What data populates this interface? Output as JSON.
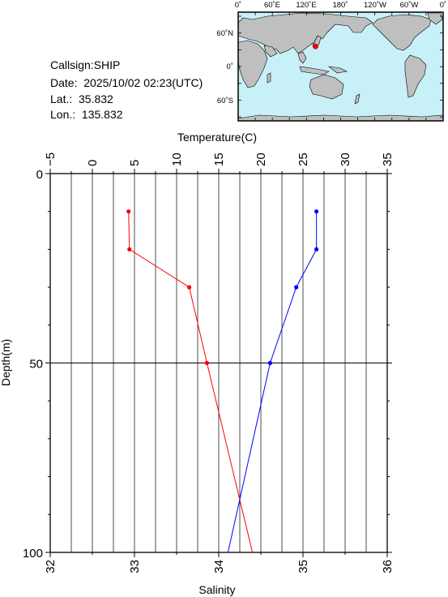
{
  "station": {
    "callsign": "Callsign:SHIP",
    "date": "Date:  2025/10/02 02:23(UTC)",
    "lat": "Lat.:  35.832",
    "lon": "Lon.:  135.832"
  },
  "map": {
    "top_labels": [
      "0˚",
      "60˚E",
      "120˚E",
      "180˚",
      "120˚W",
      "60˚W",
      "0˚"
    ],
    "lat_labels": [
      "60˚N",
      "0˚",
      "60˚S"
    ],
    "marker": {
      "lon": 135.832,
      "lat": 35.832
    },
    "colors": {
      "ocean": "#c8f0f8",
      "land": "#bfbfbf",
      "marker": "#ff0000"
    }
  },
  "chart_data": {
    "type": "line",
    "top_axis_label": "Temperature(C)",
    "bottom_axis_label": "Salinity",
    "ylabel": "Depth(m)",
    "temperature_ticks": [
      "−5",
      "0",
      "5",
      "10",
      "15",
      "20",
      "25",
      "30",
      "35"
    ],
    "salinity_ticks": [
      "32",
      "33",
      "34",
      "35",
      "36"
    ],
    "depth_ticks": [
      "0",
      "50",
      "100"
    ],
    "xlim_temperature": [
      -5,
      35
    ],
    "xlim_salinity": [
      32,
      36
    ],
    "ylim_depth": [
      0,
      100
    ],
    "grid": true,
    "series": [
      {
        "axis": "salinity",
        "color": "#ff0000",
        "points": [
          {
            "x": 32.93,
            "y": 10
          },
          {
            "x": 32.94,
            "y": 20
          },
          {
            "x": 33.65,
            "y": 30
          },
          {
            "x": 33.86,
            "y": 50
          },
          {
            "x": 34.4,
            "y": 100
          }
        ]
      },
      {
        "axis": "temperature",
        "color": "#0000ff",
        "points": [
          {
            "x": 26.6,
            "y": 10
          },
          {
            "x": 26.6,
            "y": 20
          },
          {
            "x": 24.2,
            "y": 30
          },
          {
            "x": 21.1,
            "y": 50
          },
          {
            "x": 16.1,
            "y": 100
          }
        ]
      }
    ]
  }
}
